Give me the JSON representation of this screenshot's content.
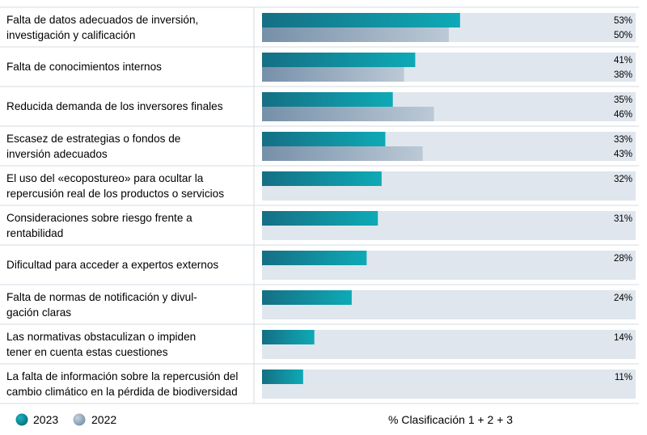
{
  "chart_data": {
    "type": "bar",
    "orientation": "horizontal",
    "categories": [
      [
        "Falta de datos adecuados de inversión,",
        "investigación y calificación"
      ],
      [
        "Falta de conocimientos internos"
      ],
      [
        "Reducida demanda de los inversores finales"
      ],
      [
        "Escasez de estrategias o fondos de",
        "inversión adecuados"
      ],
      [
        "El uso del «ecopostureo» para ocultar la",
        "repercusión real de los productos o servicios"
      ],
      [
        "Consideraciones sobre riesgo frente a",
        "rentabilidad"
      ],
      [
        "Dificultad para acceder a expertos externos"
      ],
      [
        "Falta de normas de notificación y divul-",
        "gación claras"
      ],
      [
        "Las normativas obstaculizan o impiden",
        "tener en cuenta estas cuestiones"
      ],
      [
        "La falta de información sobre la repercusión del",
        "cambio climático en la pérdida de biodiversidad"
      ]
    ],
    "series": [
      {
        "name": "2023",
        "values": [
          53,
          41,
          35,
          33,
          32,
          31,
          28,
          24,
          14,
          11
        ],
        "labels": [
          "53%",
          "41%",
          "35%",
          "33%",
          "32%",
          "31%",
          "28%",
          "24%",
          "14%",
          "11%"
        ],
        "color": "#0b8a9c"
      },
      {
        "name": "2022",
        "values": [
          50,
          38,
          46,
          43,
          null,
          null,
          null,
          null,
          null,
          null
        ],
        "labels": [
          "50%",
          "38%",
          "46%",
          "43%",
          null,
          null,
          null,
          null,
          null,
          null
        ],
        "color": "#7f97ad"
      }
    ],
    "xlim": [
      0,
      100
    ],
    "track_color": "#dfe6ed",
    "xlabel": "% Clasificación 1 + 2 + 3",
    "legend_position": "bottom-left"
  }
}
